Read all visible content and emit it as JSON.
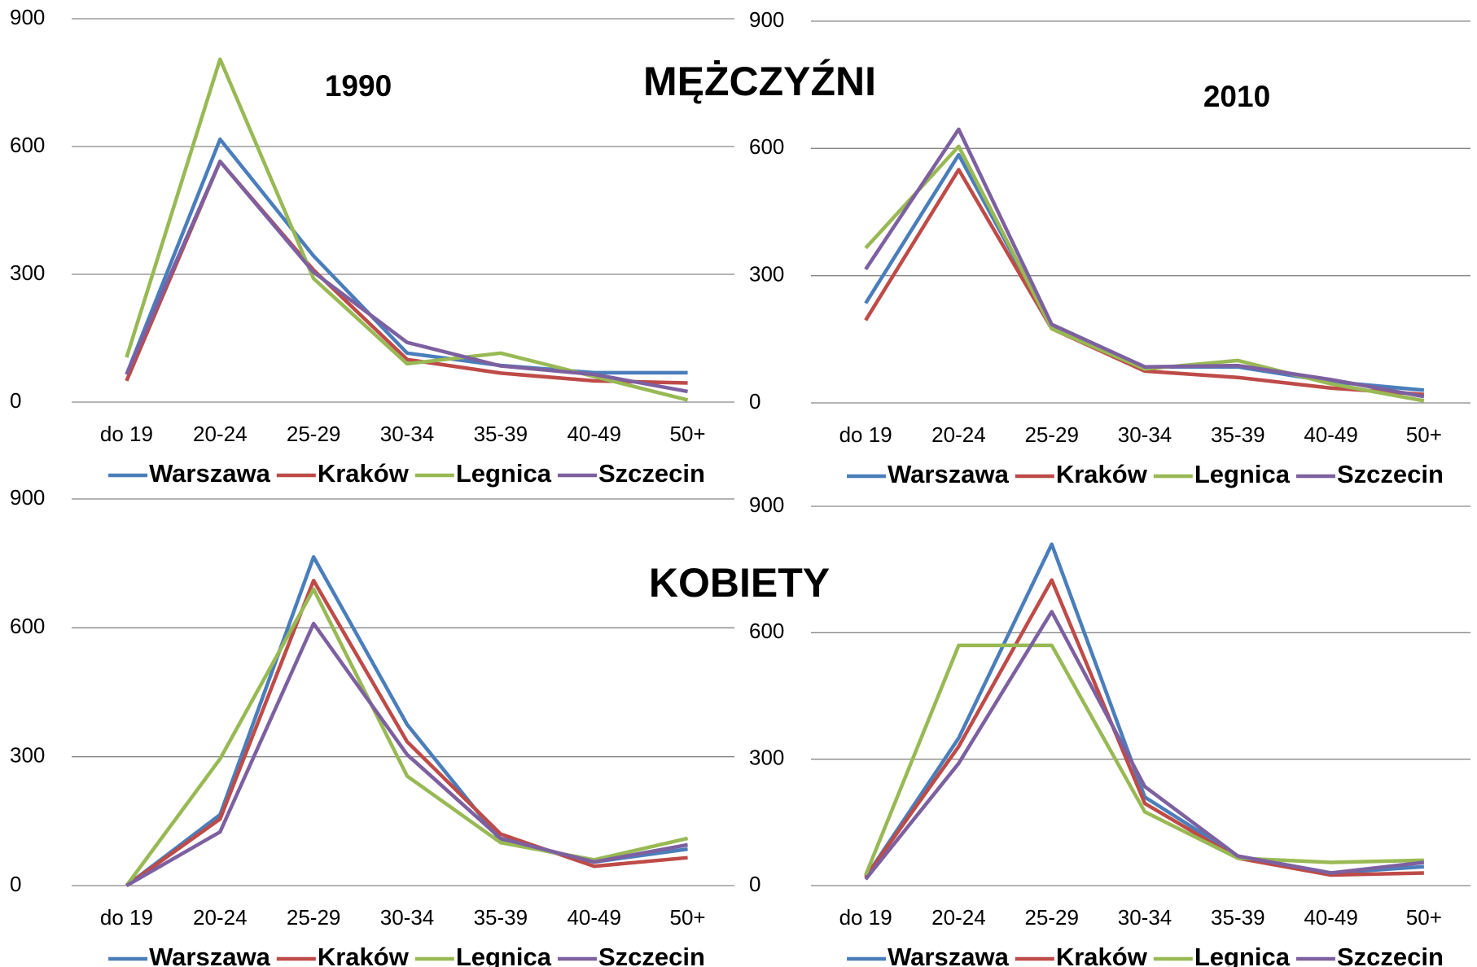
{
  "headings": [
    "MĘŻCZYŹNI",
    "KOBIETY"
  ],
  "chart_data": [
    {
      "type": "line",
      "title": "1990",
      "categories": [
        "do 19",
        "20-24",
        "25-29",
        "30-34",
        "35-39",
        "40-49",
        "50+"
      ],
      "series": [
        {
          "name": "Warszawa",
          "color": "#4a7ebb",
          "values": [
            65,
            617,
            343,
            115,
            86,
            69,
            69
          ]
        },
        {
          "name": "Kraków",
          "color": "#be4b48",
          "values": [
            50,
            565,
            310,
            100,
            68,
            50,
            45
          ]
        },
        {
          "name": "Legnica",
          "color": "#98b954",
          "values": [
            105,
            805,
            290,
            90,
            115,
            60,
            5
          ]
        },
        {
          "name": "Szczecin",
          "color": "#7d60a0",
          "values": [
            65,
            565,
            305,
            140,
            85,
            65,
            25
          ]
        }
      ],
      "ylim": [
        0,
        900
      ],
      "yticks": [
        0,
        300,
        600,
        900
      ],
      "grid": true,
      "legend": "bottom"
    },
    {
      "type": "line",
      "title": "2010",
      "categories": [
        "do 19",
        "20-24",
        "25-29",
        "30-34",
        "35-39",
        "40-49",
        "50+"
      ],
      "series": [
        {
          "name": "Warszawa",
          "color": "#4a7ebb",
          "values": [
            235,
            585,
            180,
            85,
            85,
            50,
            30
          ]
        },
        {
          "name": "Kraków",
          "color": "#be4b48",
          "values": [
            195,
            550,
            175,
            75,
            60,
            35,
            20
          ]
        },
        {
          "name": "Legnica",
          "color": "#98b954",
          "values": [
            365,
            605,
            175,
            80,
            100,
            45,
            5
          ]
        },
        {
          "name": "Szczecin",
          "color": "#7d60a0",
          "values": [
            315,
            645,
            185,
            85,
            88,
            55,
            15
          ]
        }
      ],
      "ylim": [
        0,
        900
      ],
      "yticks": [
        0,
        300,
        600,
        900
      ],
      "grid": true,
      "legend": "bottom"
    },
    {
      "type": "line",
      "categories": [
        "do 19",
        "20-24",
        "25-29",
        "30-34",
        "35-39",
        "40-49",
        "50+"
      ],
      "series": [
        {
          "name": "Warszawa",
          "color": "#4a7ebb",
          "values": [
            0,
            165,
            765,
            375,
            105,
            55,
            85
          ]
        },
        {
          "name": "Kraków",
          "color": "#be4b48",
          "values": [
            0,
            155,
            710,
            335,
            120,
            45,
            65
          ]
        },
        {
          "name": "Legnica",
          "color": "#98b954",
          "values": [
            0,
            295,
            690,
            255,
            100,
            60,
            110
          ]
        },
        {
          "name": "Szczecin",
          "color": "#7d60a0",
          "values": [
            0,
            125,
            610,
            305,
            110,
            55,
            95
          ]
        }
      ],
      "ylim": [
        0,
        900
      ],
      "yticks": [
        0,
        300,
        600,
        900
      ],
      "grid": true,
      "legend": "bottom"
    },
    {
      "type": "line",
      "categories": [
        "do 19",
        "20-24",
        "25-29",
        "30-34",
        "35-39",
        "40-49",
        "50+"
      ],
      "series": [
        {
          "name": "Warszawa",
          "color": "#4a7ebb",
          "values": [
            20,
            350,
            810,
            210,
            70,
            30,
            45
          ]
        },
        {
          "name": "Kraków",
          "color": "#be4b48",
          "values": [
            20,
            330,
            725,
            195,
            65,
            25,
            30
          ]
        },
        {
          "name": "Legnica",
          "color": "#98b954",
          "values": [
            25,
            570,
            570,
            175,
            65,
            55,
            60
          ]
        },
        {
          "name": "Szczecin",
          "color": "#7d60a0",
          "values": [
            15,
            290,
            650,
            235,
            70,
            30,
            55
          ]
        }
      ],
      "ylim": [
        0,
        900
      ],
      "yticks": [
        0,
        300,
        600,
        900
      ],
      "grid": true,
      "legend": "bottom"
    }
  ]
}
